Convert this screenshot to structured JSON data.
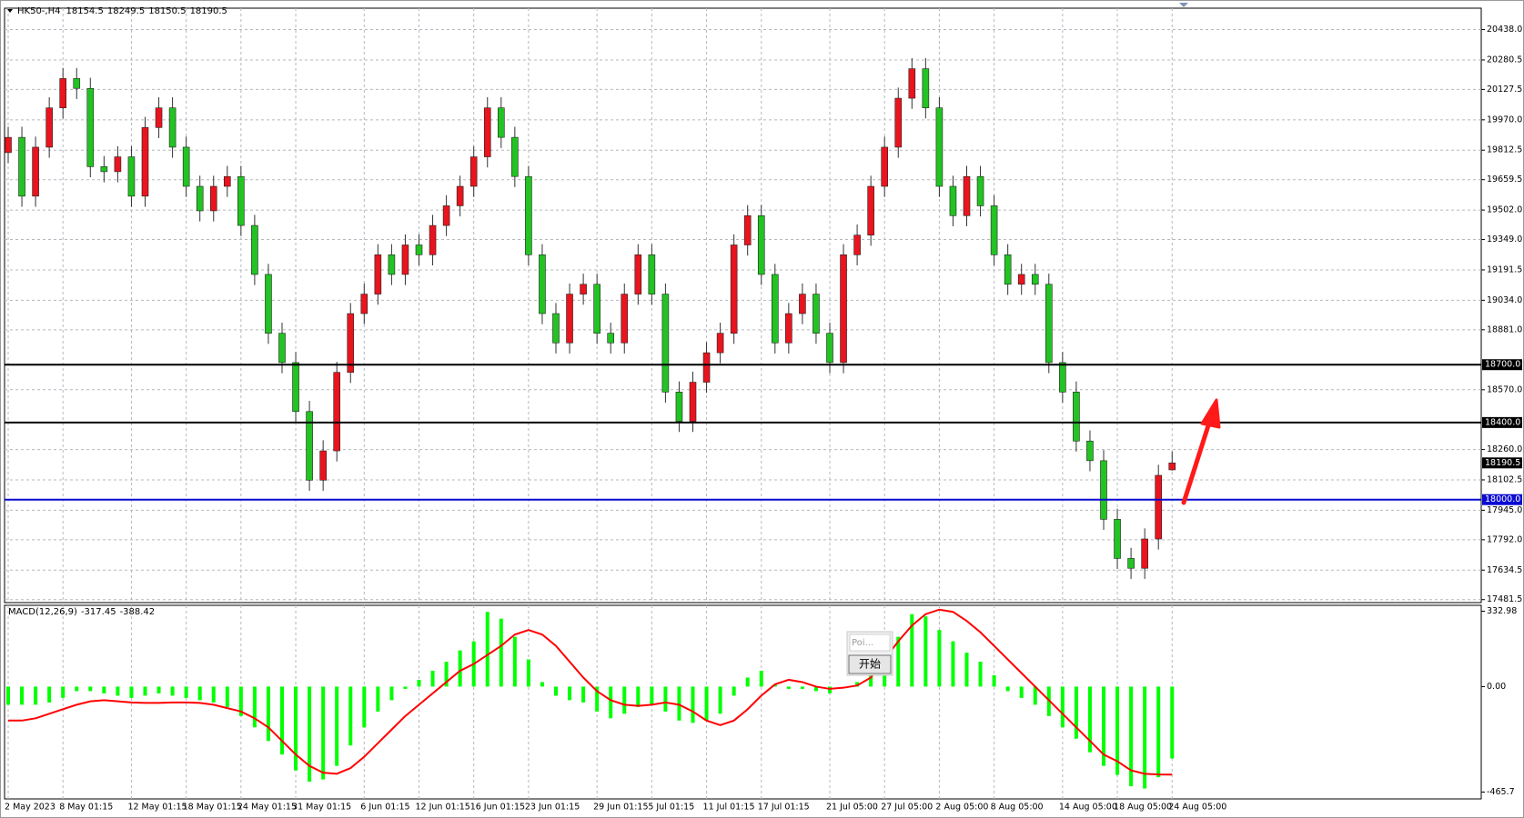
{
  "chart_data": [
    {
      "type": "candlestick",
      "symbol": "HK50-,H4",
      "up_color": "#e8141e",
      "down_color": "#22c322",
      "ylim": [
        17466,
        20549
      ],
      "yticks": [
        {
          "value": 20438,
          "label": "20438.0"
        },
        20280.5,
        20127.5,
        {
          "value": 19970,
          "label": "19970.0"
        },
        19812.5,
        19659.5,
        {
          "value": 19502,
          "label": "19502.0"
        },
        {
          "value": 19349,
          "label": "19349.0"
        },
        19191.5,
        {
          "value": 19034,
          "label": "19034.0"
        },
        {
          "value": 18881,
          "label": "18881.0"
        },
        {
          "value": 18570,
          "label": "18570.0"
        },
        {
          "value": 18260,
          "label": "18260.0"
        },
        18102.5,
        {
          "value": 17945,
          "label": "17945.0"
        },
        {
          "value": 17792,
          "label": "17792.0"
        },
        17634.5,
        17481.5
      ],
      "levels": [
        {
          "value": 18700,
          "label": "18700.0",
          "color": "#000000"
        },
        {
          "value": 18400,
          "label": "18400.0",
          "color": "#000000"
        },
        {
          "value": 18000,
          "label": "18000.0",
          "color": "#0a0ad2"
        }
      ],
      "categories": [
        "2 May 2023",
        null,
        null,
        null,
        "8 May 01:15",
        null,
        null,
        null,
        null,
        "12 May 01:15",
        null,
        null,
        null,
        "18 May 01:15",
        null,
        null,
        null,
        "24 May 01:15",
        null,
        null,
        null,
        "31 May 01:15",
        null,
        null,
        null,
        null,
        "6 Jun 01:15",
        null,
        null,
        null,
        "12 Jun 01:15",
        null,
        null,
        null,
        "16 Jun 01:15",
        null,
        null,
        null,
        "23 Jun 01:15",
        null,
        null,
        null,
        null,
        "29 Jun 01:15",
        null,
        null,
        null,
        "5 Jul 01:15",
        null,
        null,
        null,
        "11 Jul 01:15",
        null,
        null,
        null,
        "17 Jul 01:15",
        null,
        null,
        null,
        null,
        "21 Jul 05:00",
        null,
        null,
        null,
        "27 Jul 05:00",
        null,
        null,
        null,
        "2 Aug 05:00",
        null,
        null,
        null,
        "8 Aug 05:00",
        null,
        null,
        null,
        null,
        "14 Aug 05:00",
        null,
        null,
        null,
        "18 Aug 05:00",
        null,
        null,
        null,
        "24 Aug 05:00"
      ],
      "open": [
        19800,
        19879,
        19574,
        19828,
        20032,
        20184,
        20133,
        19727,
        19701,
        19778,
        19574,
        19930,
        20032,
        19828,
        19625,
        19498,
        19625,
        19676,
        19422,
        19168,
        18863,
        18711,
        18457,
        18101,
        18253,
        18660,
        18965,
        19066,
        19270,
        19168,
        19321,
        19270,
        19422,
        19524,
        19625,
        19778,
        20032,
        19879,
        19676,
        19270,
        18965,
        18813,
        19066,
        19117,
        18863,
        18813,
        19066,
        19270,
        19066,
        18558,
        18406,
        18609,
        18762,
        18863,
        19321,
        19473,
        19168,
        18813,
        18965,
        19066,
        18863,
        18711,
        19270,
        19372,
        19625,
        19828,
        20082,
        20235,
        20032,
        19625,
        19473,
        19676,
        19524,
        19270,
        19117,
        19168,
        19117,
        18711,
        18558,
        18304,
        18202,
        17898,
        17695,
        17644,
        17796,
        18154.5
      ],
      "high": [
        19934,
        19934,
        19883,
        20087,
        20239,
        20239,
        20188,
        19782,
        19833,
        19833,
        19985,
        20087,
        20087,
        19883,
        19680,
        19680,
        19731,
        19731,
        19477,
        19223,
        18918,
        18766,
        18512,
        18308,
        18715,
        19020,
        19121,
        19325,
        19325,
        19376,
        19376,
        19477,
        19579,
        19680,
        19833,
        20087,
        20087,
        19934,
        19731,
        19325,
        19020,
        19121,
        19172,
        19172,
        18918,
        19121,
        19325,
        19325,
        19121,
        18613,
        18664,
        18817,
        18918,
        19376,
        19528,
        19528,
        19223,
        19020,
        19121,
        19121,
        18918,
        19325,
        19427,
        19680,
        19883,
        20137,
        20290,
        20290,
        20087,
        19680,
        19731,
        19731,
        19579,
        19325,
        19223,
        19223,
        19172,
        18766,
        18613,
        18359,
        18257,
        17953,
        17750,
        17851,
        18181,
        18249.5
      ],
      "low": [
        19745,
        19519,
        19519,
        19773,
        19977,
        20078,
        19672,
        19646,
        19646,
        19519,
        19519,
        19875,
        19773,
        19570,
        19443,
        19443,
        19570,
        19367,
        19113,
        18808,
        18656,
        18402,
        18046,
        18046,
        18198,
        18605,
        18910,
        19011,
        19113,
        19113,
        19215,
        19215,
        19367,
        19469,
        19570,
        19723,
        19824,
        19621,
        19215,
        18910,
        18758,
        18758,
        19011,
        18808,
        18758,
        18758,
        19011,
        19011,
        18503,
        18351,
        18351,
        18554,
        18707,
        18808,
        19266,
        19113,
        18758,
        18758,
        18910,
        18808,
        18656,
        18656,
        19215,
        19317,
        19570,
        19773,
        20027,
        19977,
        19570,
        19418,
        19418,
        19469,
        19215,
        19062,
        19062,
        19062,
        18656,
        18503,
        18249,
        18147,
        17843,
        17640,
        17589,
        17589,
        17741,
        18150.5
      ],
      "close": [
        19879,
        19574,
        19828,
        20032,
        20184,
        20133,
        19727,
        19701,
        19778,
        19574,
        19930,
        20032,
        19828,
        19625,
        19498,
        19625,
        19676,
        19422,
        19168,
        18863,
        18711,
        18457,
        18101,
        18253,
        18660,
        18965,
        19066,
        19270,
        19168,
        19321,
        19270,
        19422,
        19524,
        19625,
        19778,
        20032,
        19879,
        19676,
        19270,
        18965,
        18813,
        19066,
        19117,
        18863,
        18813,
        19066,
        19270,
        19066,
        18558,
        18406,
        18609,
        18762,
        18863,
        19321,
        19473,
        19168,
        18813,
        18965,
        19066,
        18863,
        18711,
        19270,
        19372,
        19625,
        19828,
        20082,
        20235,
        20032,
        19625,
        19473,
        19676,
        19524,
        19270,
        19117,
        19168,
        19117,
        18711,
        18558,
        18304,
        18202,
        17898,
        17695,
        17644,
        17796,
        18126,
        18190.5
      ]
    },
    {
      "type": "macd",
      "label": "MACD(12,26,9)",
      "ylim": [
        -496,
        359
      ],
      "yticks": [
        332.98,
        {
          "value": 0,
          "label": "0.00"
        },
        -465.7
      ],
      "series": [
        {
          "kind": "bar",
          "color": "#00ff00",
          "values": [
            -80,
            -80,
            -80,
            -70,
            -50,
            -20,
            -20,
            -30,
            -40,
            -50,
            -40,
            -30,
            -40,
            -50,
            -60,
            -70,
            -90,
            -130,
            -180,
            -240,
            -300,
            -370,
            -420,
            -410,
            -350,
            -260,
            -180,
            -110,
            -60,
            -10,
            30,
            70,
            110,
            160,
            200,
            330,
            300,
            220,
            120,
            20,
            -40,
            -60,
            -70,
            -110,
            -140,
            -120,
            -90,
            -80,
            -110,
            -150,
            -160,
            -150,
            -120,
            -40,
            40,
            70,
            10,
            -10,
            -10,
            -20,
            -30,
            0,
            20,
            60,
            130,
            220,
            320,
            310,
            250,
            200,
            150,
            110,
            50,
            -20,
            -50,
            -80,
            -130,
            -180,
            -230,
            -290,
            -350,
            -390,
            -440,
            -450,
            -400,
            -317.45
          ]
        },
        {
          "kind": "line",
          "color": "#ff0000",
          "values": [
            -150,
            -150,
            -140,
            -120,
            -100,
            -80,
            -65,
            -60,
            -65,
            -70,
            -72,
            -72,
            -70,
            -70,
            -72,
            -80,
            -95,
            -110,
            -140,
            -180,
            -240,
            -300,
            -350,
            -380,
            -385,
            -360,
            -310,
            -250,
            -190,
            -130,
            -80,
            -30,
            20,
            70,
            100,
            140,
            180,
            230,
            250,
            230,
            180,
            110,
            40,
            -20,
            -60,
            -80,
            -85,
            -80,
            -70,
            -80,
            -110,
            -150,
            -170,
            -150,
            -100,
            -40,
            10,
            30,
            20,
            0,
            -10,
            -5,
            5,
            40,
            120,
            200,
            270,
            320,
            340,
            330,
            290,
            240,
            180,
            120,
            60,
            0,
            -60,
            -120,
            -180,
            -240,
            -300,
            -330,
            -370,
            -385,
            -388,
            -388.42
          ]
        }
      ]
    }
  ],
  "popup": {
    "input": "Poi...",
    "button": "开始"
  }
}
